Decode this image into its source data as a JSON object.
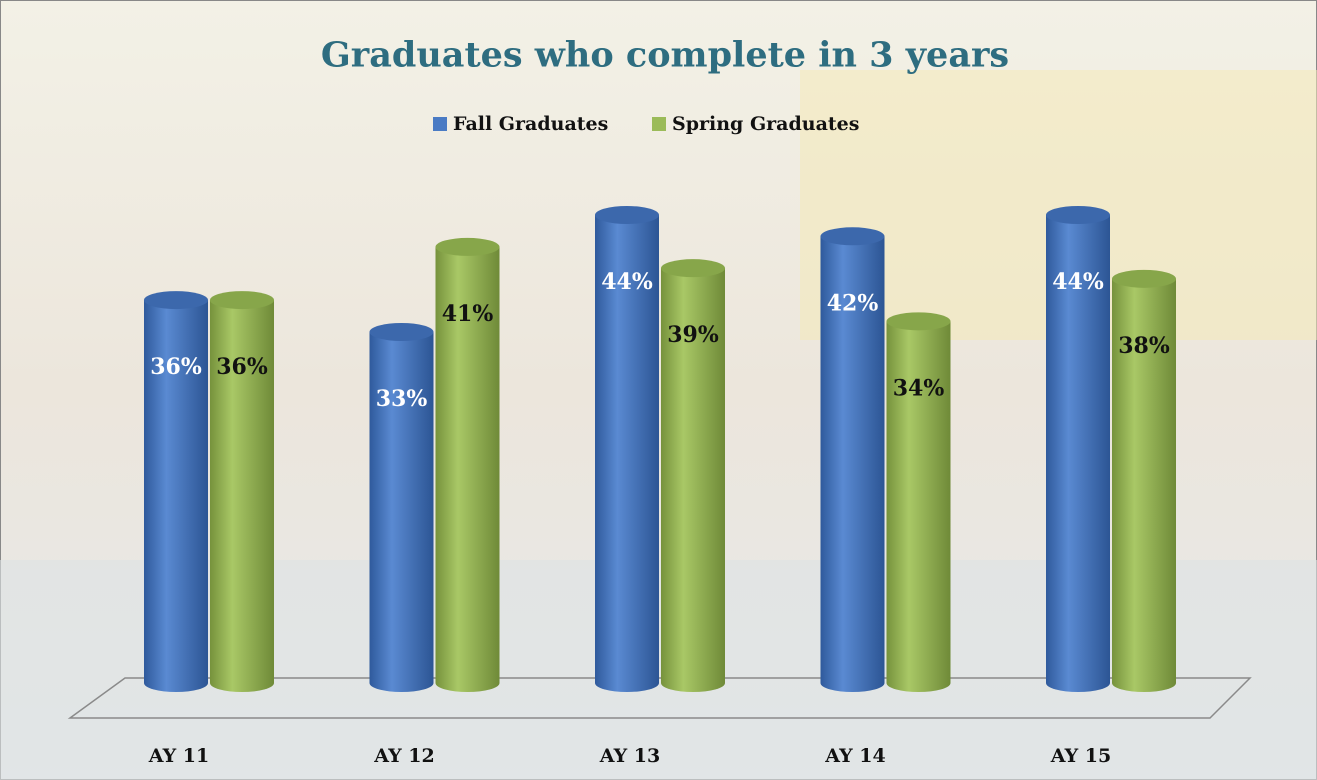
{
  "chart_data": {
    "type": "bar3d",
    "title": "Graduates who complete in 3 years",
    "categories": [
      "AY 11",
      "AY 12",
      "AY 13",
      "AY 14",
      "AY 15"
    ],
    "series": [
      {
        "name": "Fall Graduates",
        "color": "#4a7bc4",
        "values": [
          36,
          33,
          44,
          42,
          44
        ],
        "value_labels": [
          "36%",
          "33%",
          "44%",
          "42%",
          "44%"
        ]
      },
      {
        "name": "Spring Graduates",
        "color": "#9bbb59",
        "values": [
          36,
          41,
          39,
          34,
          38
        ],
        "value_labels": [
          "36%",
          "41%",
          "39%",
          "34%",
          "38%"
        ]
      }
    ],
    "legend": "top"
  }
}
